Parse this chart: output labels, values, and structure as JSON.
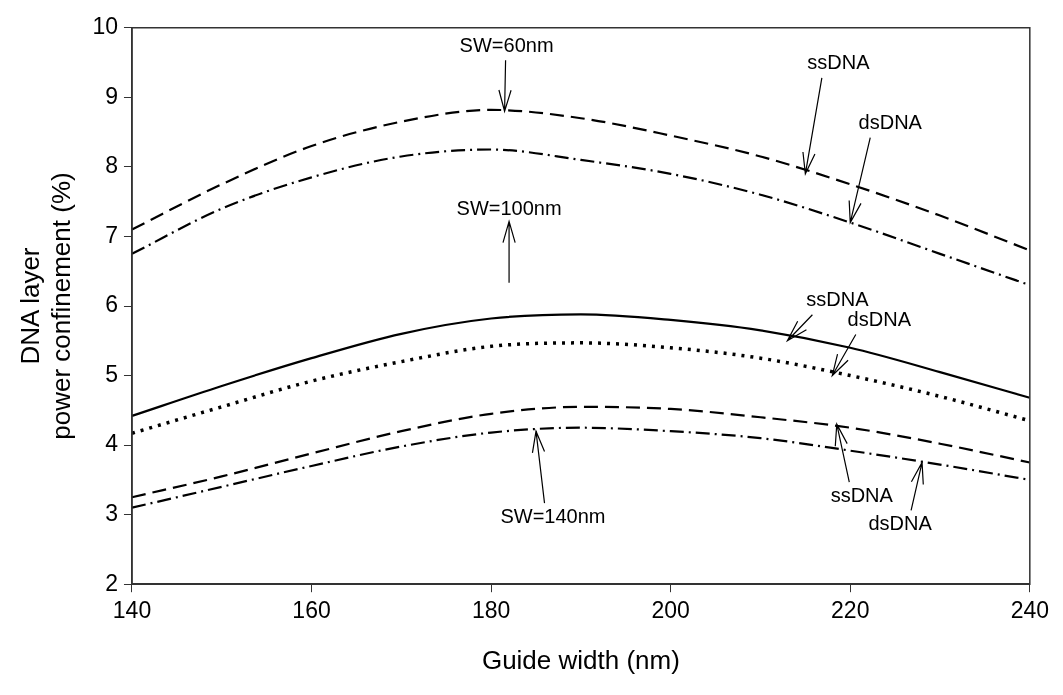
{
  "chart_data": {
    "type": "line",
    "xlabel": "Guide width (nm)",
    "ylabel": "DNA layer\npower confinement (%)",
    "x": [
      140,
      150,
      160,
      170,
      180,
      190,
      200,
      210,
      220,
      230,
      240
    ],
    "xlim": [
      140,
      240
    ],
    "xticks": [
      140,
      160,
      180,
      200,
      220,
      240
    ],
    "ylim": [
      2,
      10
    ],
    "yticks": [
      2,
      3,
      4,
      5,
      6,
      7,
      8,
      9,
      10
    ],
    "marker": "none",
    "series": [
      {
        "color": "#000000",
        "line_style": "dashed",
        "values": [
          7.1,
          7.75,
          8.3,
          8.65,
          8.82,
          8.7,
          8.45,
          8.15,
          7.75,
          7.3,
          6.8
        ]
      },
      {
        "color": "#000000",
        "line_style": "dashdot",
        "values": [
          6.75,
          7.4,
          7.85,
          8.15,
          8.25,
          8.1,
          7.9,
          7.6,
          7.2,
          6.75,
          6.3
        ]
      },
      {
        "color": "#000000",
        "line_style": "solid",
        "values": [
          4.42,
          4.85,
          5.25,
          5.6,
          5.82,
          5.88,
          5.8,
          5.65,
          5.4,
          5.05,
          4.68
        ]
      },
      {
        "color": "#000000",
        "line_style": "dotted",
        "values": [
          4.17,
          4.55,
          4.92,
          5.2,
          5.42,
          5.47,
          5.4,
          5.25,
          5.0,
          4.7,
          4.35
        ]
      },
      {
        "color": "#000000",
        "line_style": "dashed",
        "values": [
          3.25,
          3.55,
          3.88,
          4.2,
          4.45,
          4.55,
          4.52,
          4.4,
          4.25,
          4.02,
          3.75
        ]
      },
      {
        "color": "#000000",
        "line_style": "dashdot",
        "values": [
          3.1,
          3.4,
          3.7,
          3.98,
          4.18,
          4.25,
          4.2,
          4.1,
          3.92,
          3.72,
          3.5
        ]
      }
    ],
    "annotations": [
      {
        "text": "SW=60nm",
        "x": 181.5,
        "y": 8.8
      },
      "SW=100nm",
      {
        "text": "SW=140nm",
        "x": 185,
        "y": 4.2
      },
      {
        "text": "ssDNA",
        "x": 215,
        "y": 7.9
      },
      {
        "text": "dsDNA",
        "x": 220,
        "y": 7.2
      },
      {
        "text": "ssDNA",
        "x": 213,
        "y": 5.5
      },
      {
        "text": "dsDNA",
        "x": 218,
        "y": 5.0
      },
      {
        "text": "ssDNA",
        "x": 218.5,
        "y": 4.3
      },
      {
        "text": "dsDNA",
        "x": 228,
        "y": 3.75
      }
    ]
  }
}
